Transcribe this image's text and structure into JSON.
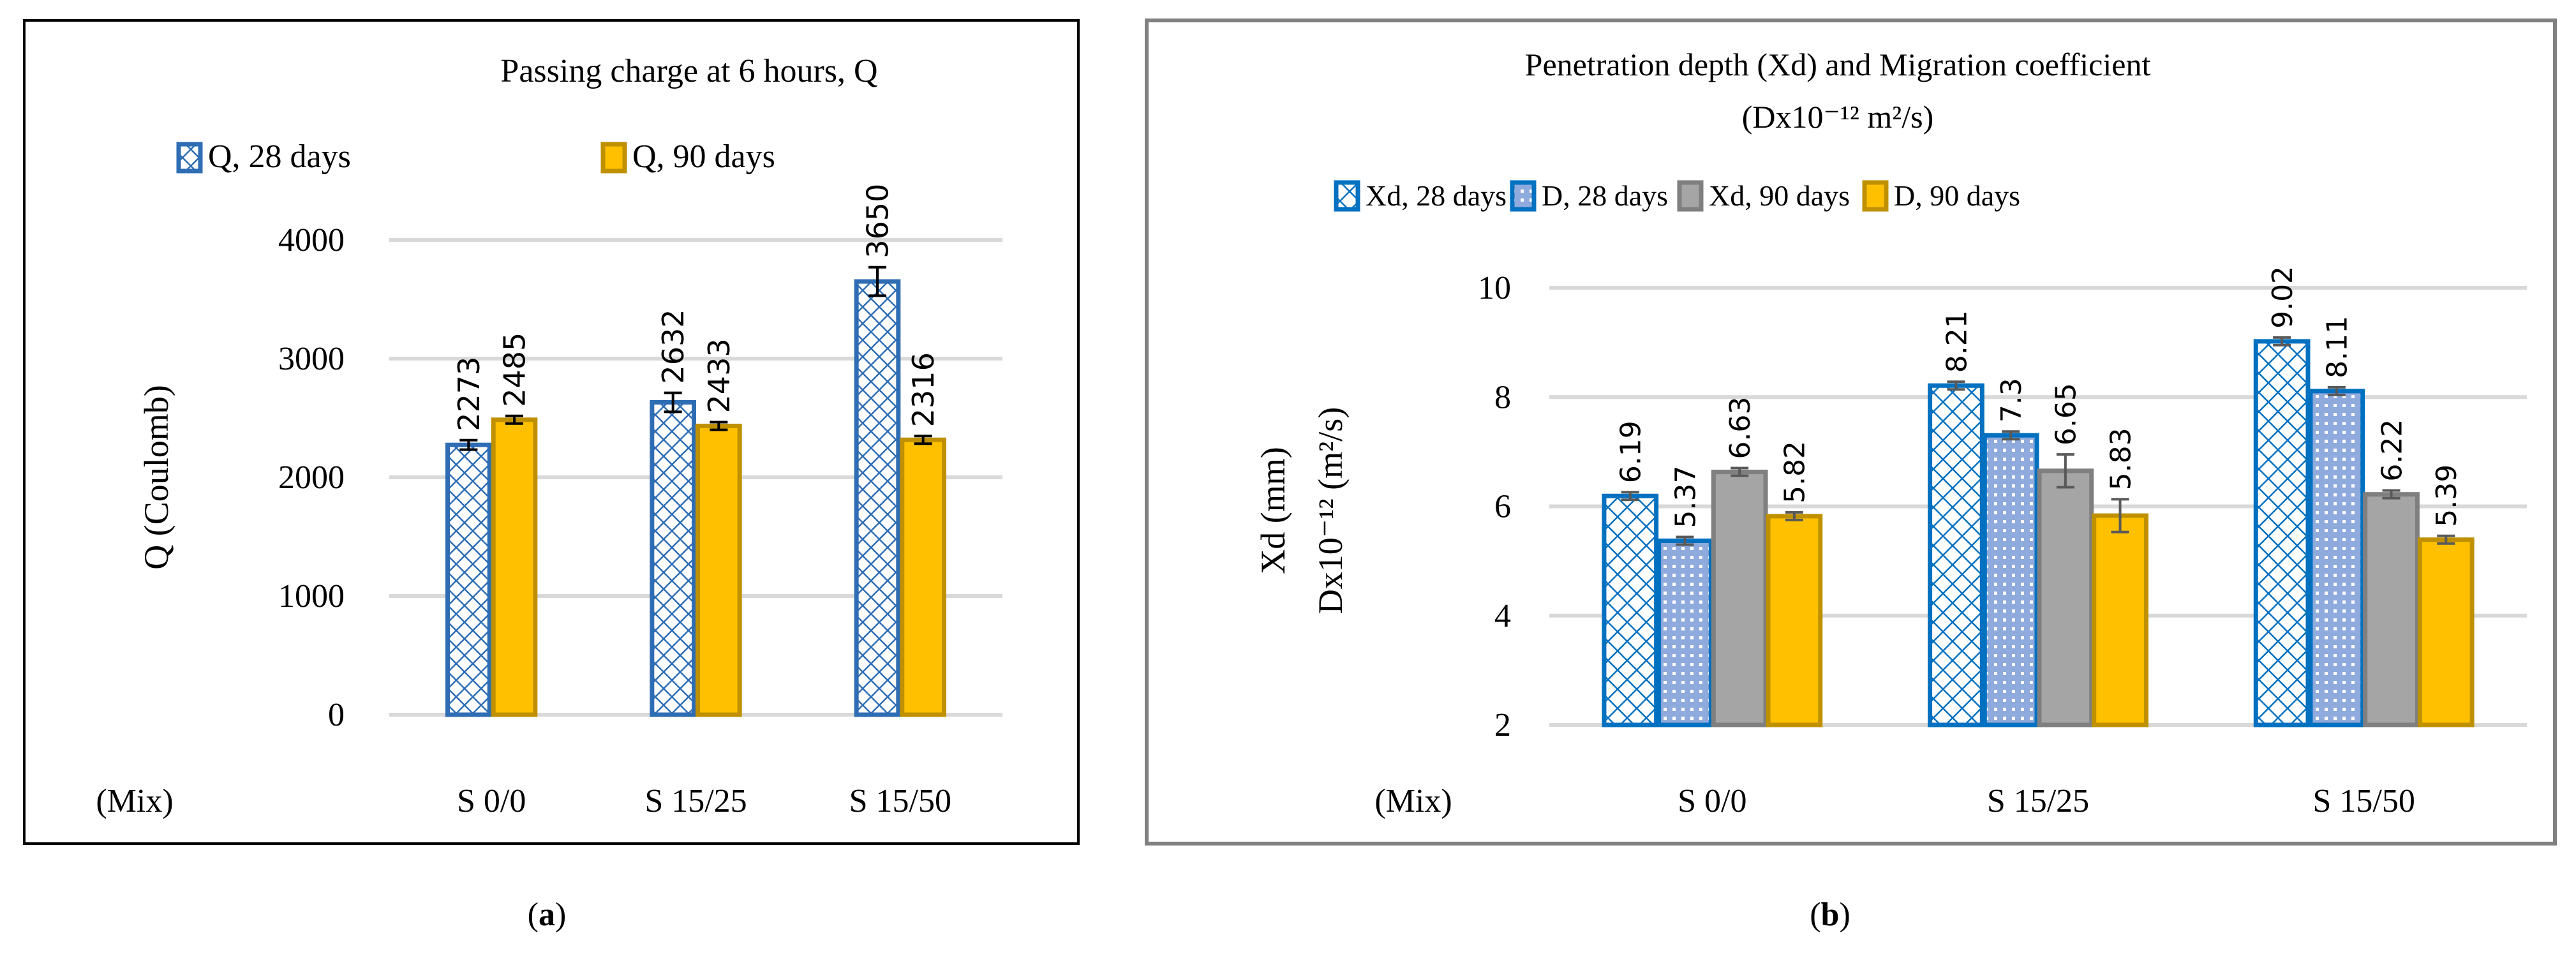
{
  "chart_data": [
    {
      "type": "bar",
      "panel_label": "a",
      "title": "Passing charge at 6 hours, Q",
      "xlabel": "(Mix)",
      "ylabel": "Q (Coulomb)",
      "ylim": [
        0,
        4000
      ],
      "yticks": [
        0,
        1000,
        2000,
        3000,
        4000
      ],
      "grid": true,
      "legend_position": "top",
      "categories": [
        "S 0/0",
        "S 15/25",
        "S 15/50"
      ],
      "series": [
        {
          "name": "Q, 28 days",
          "values": [
            2273,
            2632,
            3650
          ],
          "errors": [
            40,
            80,
            120
          ],
          "fill": "crosshatch",
          "color": "#2e6db4"
        },
        {
          "name": "Q, 90 days",
          "values": [
            2485,
            2433,
            2316
          ],
          "errors": [
            20,
            30,
            15
          ],
          "fill": "solid",
          "color": "#ffc000",
          "border": "#bf9000"
        }
      ]
    },
    {
      "type": "bar",
      "panel_label": "b",
      "title": [
        "Penetration depth (Xd) and Migration coefficient",
        "(Dx10⁻¹² m²/s)"
      ],
      "xlabel": "(Mix)",
      "ylabel": [
        "Xd (mm)",
        "Dx10⁻¹² (m²/s)"
      ],
      "ylim": [
        2,
        10
      ],
      "yticks": [
        2,
        4,
        6,
        8,
        10
      ],
      "grid": true,
      "legend_position": "top",
      "categories": [
        "S 0/0",
        "S 15/25",
        "S 15/50"
      ],
      "series": [
        {
          "name": "Xd, 28 days",
          "values": [
            6.19,
            8.21,
            9.02
          ],
          "labels": [
            "6.19",
            "8.21",
            "9.02"
          ],
          "errors": [
            0.04,
            0.03,
            0.03
          ],
          "fill": "crosshatch",
          "color": "#0070c0"
        },
        {
          "name": "D, 28 days",
          "values": [
            5.37,
            7.3,
            8.11
          ],
          "labels": [
            "5.37",
            "7.3",
            "8.11"
          ],
          "errors": [
            0.06,
            0.05,
            0.06
          ],
          "fill": "dotted",
          "color": "#8faadc",
          "border": "#0070c0"
        },
        {
          "name": "Xd, 90 days",
          "values": [
            6.63,
            6.65,
            6.22
          ],
          "labels": [
            "6.63",
            "6.65",
            "6.22"
          ],
          "errors": [
            0.07,
            0.3,
            0.03
          ],
          "fill": "solid",
          "color": "#a5a5a5",
          "border": "#7f7f7f"
        },
        {
          "name": "D, 90 days",
          "values": [
            5.82,
            5.83,
            5.39
          ],
          "labels": [
            "5.82",
            "5.83",
            "5.39"
          ],
          "errors": [
            0.07,
            0.3,
            0.03
          ],
          "fill": "solid",
          "color": "#ffc000",
          "border": "#bf9000"
        }
      ]
    }
  ]
}
